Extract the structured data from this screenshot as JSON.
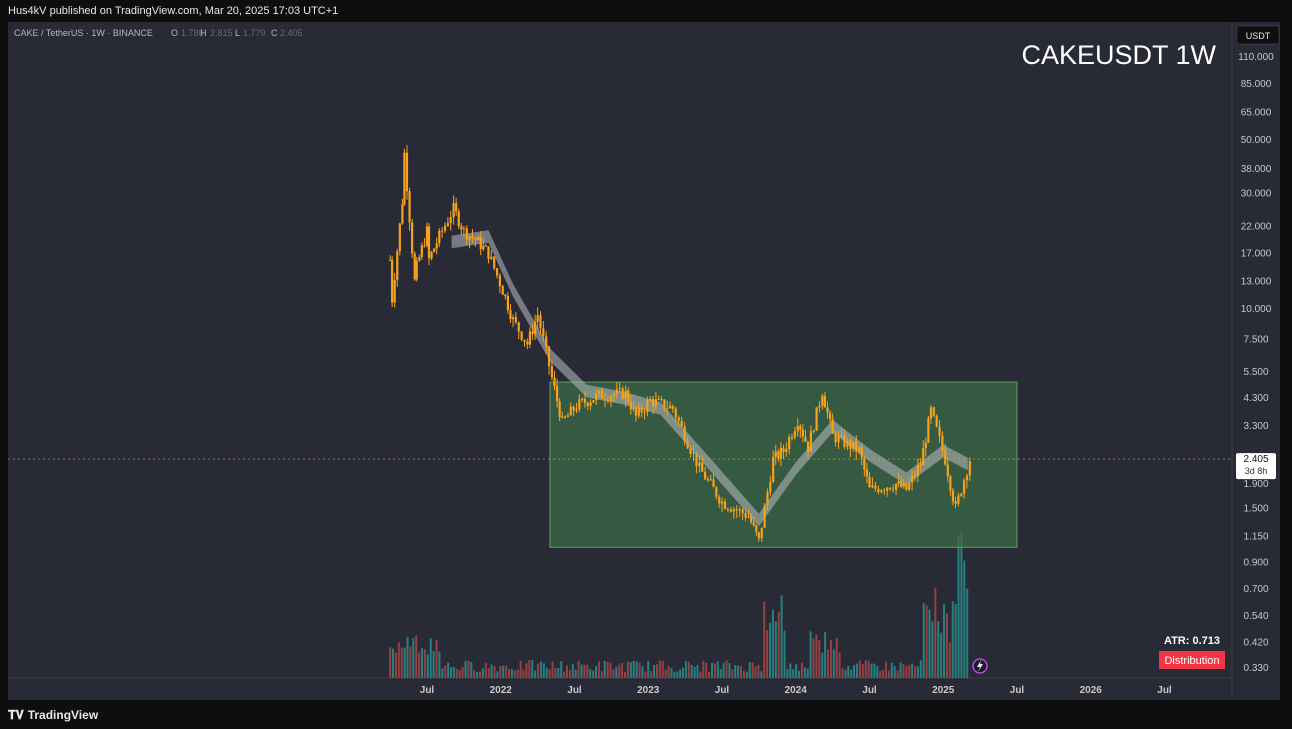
{
  "header": {
    "published": "Hus4kV published on TradingView.com, Mar 20, 2025 17:03 UTC+1"
  },
  "footer": {
    "brand": "TradingView",
    "brand_icon": "tradingview-logo-icon"
  },
  "chart": {
    "symbol_line": "CAKE / TetherUS · 1W · BINANCE",
    "ohlc": {
      "o_label": "O",
      "o_value": "1.780",
      "h_label": "H",
      "h_value": "2.815",
      "l_label": "L",
      "l_value": "1.779",
      "c_label": "C",
      "c_value": "2.405"
    },
    "big_title": "CAKEUSDT 1W",
    "currency": "USDT",
    "price_tag": "2.405",
    "countdown": "3d 8h",
    "atr_label": "ATR: 0.713",
    "distribution_label": "Distribution",
    "colors": {
      "background": "#282a36",
      "candle": "#f7a21b",
      "box_fill": "#3c6e47",
      "box_border": "#5f9e66",
      "ema_band": "#b8bcc0",
      "volume_up": "#2a9d9a",
      "volume_down": "#b84a4a",
      "distribution": "#f23645"
    }
  },
  "chart_data": {
    "type": "candlestick",
    "y_scale": "log",
    "y_ticks": [
      "110.000",
      "85.000",
      "65.000",
      "50.000",
      "38.000",
      "30.000",
      "22.000",
      "17.000",
      "13.000",
      "10.000",
      "7.500",
      "5.500",
      "4.300",
      "3.300",
      "1.900",
      "1.500",
      "1.150",
      "0.900",
      "0.700",
      "0.540",
      "0.420",
      "0.330"
    ],
    "x_ticks": [
      "Jul",
      "2022",
      "Jul",
      "2023",
      "Jul",
      "2024",
      "Jul",
      "2025",
      "Jul",
      "2026",
      "Jul"
    ],
    "last_close": 2.405,
    "range_box": {
      "start": "2022-05",
      "end": "2025-07",
      "high": 5.0,
      "low": 1.04
    },
    "price_path": [
      {
        "t": "2021-04",
        "p": 16
      },
      {
        "t": "2021-04",
        "p": 11
      },
      {
        "t": "2021-05",
        "p": 28
      },
      {
        "t": "2021-05",
        "p": 44
      },
      {
        "t": "2021-06",
        "p": 13
      },
      {
        "t": "2021-06",
        "p": 15
      },
      {
        "t": "2021-07",
        "p": 21
      },
      {
        "t": "2021-07",
        "p": 16
      },
      {
        "t": "2021-08",
        "p": 20
      },
      {
        "t": "2021-09",
        "p": 26
      },
      {
        "t": "2021-10",
        "p": 21
      },
      {
        "t": "2021-11",
        "p": 19
      },
      {
        "t": "2021-12",
        "p": 17
      },
      {
        "t": "2022-01",
        "p": 12
      },
      {
        "t": "2022-02",
        "p": 9
      },
      {
        "t": "2022-03",
        "p": 7.2
      },
      {
        "t": "2022-04",
        "p": 9.5
      },
      {
        "t": "2022-05",
        "p": 5.2
      },
      {
        "t": "2022-06",
        "p": 3.4
      },
      {
        "t": "2022-07",
        "p": 4.0
      },
      {
        "t": "2022-09",
        "p": 4.4
      },
      {
        "t": "2022-11",
        "p": 4.5
      },
      {
        "t": "2022-12",
        "p": 3.6
      },
      {
        "t": "2023-01",
        "p": 4.2
      },
      {
        "t": "2023-03",
        "p": 3.9
      },
      {
        "t": "2023-05",
        "p": 2.2
      },
      {
        "t": "2023-07",
        "p": 1.6
      },
      {
        "t": "2023-09",
        "p": 1.4
      },
      {
        "t": "2023-10",
        "p": 1.1
      },
      {
        "t": "2023-11",
        "p": 2.4
      },
      {
        "t": "2023-12",
        "p": 2.6
      },
      {
        "t": "2024-01",
        "p": 3.5
      },
      {
        "t": "2024-02",
        "p": 2.7
      },
      {
        "t": "2024-03",
        "p": 4.6
      },
      {
        "t": "2024-04",
        "p": 3.0
      },
      {
        "t": "2024-06",
        "p": 2.6
      },
      {
        "t": "2024-07",
        "p": 1.8
      },
      {
        "t": "2024-09",
        "p": 1.9
      },
      {
        "t": "2024-10",
        "p": 1.8
      },
      {
        "t": "2024-11",
        "p": 2.3
      },
      {
        "t": "2024-12",
        "p": 3.8
      },
      {
        "t": "2025-01",
        "p": 2.4
      },
      {
        "t": "2025-02",
        "p": 1.5
      },
      {
        "t": "2025-03",
        "p": 2.405
      }
    ],
    "ema_band": [
      {
        "t": "2021-09",
        "p": 19
      },
      {
        "t": "2021-12",
        "p": 20
      },
      {
        "t": "2022-02",
        "p": 12
      },
      {
        "t": "2022-05",
        "p": 6.5
      },
      {
        "t": "2022-08",
        "p": 4.6
      },
      {
        "t": "2022-11",
        "p": 4.3
      },
      {
        "t": "2023-02",
        "p": 3.9
      },
      {
        "t": "2023-06",
        "p": 2.3
      },
      {
        "t": "2023-10",
        "p": 1.35
      },
      {
        "t": "2024-01",
        "p": 2.2
      },
      {
        "t": "2024-04",
        "p": 3.3
      },
      {
        "t": "2024-07",
        "p": 2.5
      },
      {
        "t": "2024-10",
        "p": 2.0
      },
      {
        "t": "2025-01",
        "p": 2.6
      },
      {
        "t": "2025-03",
        "p": 2.3
      }
    ],
    "atr": 0.713
  }
}
